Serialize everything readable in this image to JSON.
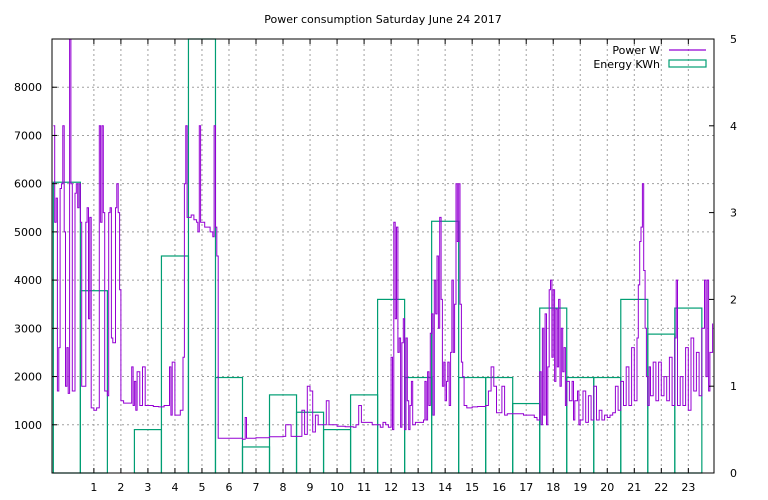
{
  "chart_data": {
    "type": "line",
    "title": "Power consumption Saturday June 24 2017",
    "xlabel": "",
    "ylabel": "",
    "y2label": "",
    "xlim": [
      -0.55,
      23.95
    ],
    "ylim": [
      0,
      9000
    ],
    "y2lim": [
      0,
      5
    ],
    "grid": true,
    "legend_position": "top-right",
    "x_ticks": [
      1,
      2,
      3,
      4,
      5,
      6,
      7,
      8,
      9,
      10,
      11,
      12,
      13,
      14,
      15,
      16,
      17,
      18,
      19,
      20,
      21,
      22,
      23
    ],
    "y_ticks": [
      1000,
      2000,
      3000,
      4000,
      5000,
      6000,
      7000,
      8000
    ],
    "y2_ticks": [
      0,
      1,
      2,
      3,
      4,
      5
    ],
    "series": [
      {
        "name": "Power W",
        "axis": "left",
        "color": "#9400d3",
        "style": "line",
        "points": [
          [
            -0.5,
            7200
          ],
          [
            -0.45,
            5200
          ],
          [
            -0.4,
            5700
          ],
          [
            -0.35,
            1700
          ],
          [
            -0.3,
            2600
          ],
          [
            -0.25,
            5900
          ],
          [
            -0.2,
            6000
          ],
          [
            -0.15,
            7200
          ],
          [
            -0.1,
            5000
          ],
          [
            -0.05,
            1800
          ],
          [
            0.0,
            2600
          ],
          [
            0.05,
            1650
          ],
          [
            0.1,
            9000
          ],
          [
            0.15,
            6000
          ],
          [
            0.2,
            1700
          ],
          [
            0.3,
            5800
          ],
          [
            0.35,
            6000
          ],
          [
            0.4,
            5500
          ],
          [
            0.45,
            6000
          ],
          [
            0.5,
            5200
          ],
          [
            0.55,
            1800
          ],
          [
            0.6,
            1800
          ],
          [
            0.7,
            5200
          ],
          [
            0.75,
            5500
          ],
          [
            0.8,
            3200
          ],
          [
            0.85,
            5300
          ],
          [
            0.9,
            1350
          ],
          [
            1.0,
            1300
          ],
          [
            1.1,
            1350
          ],
          [
            1.2,
            7200
          ],
          [
            1.25,
            5200
          ],
          [
            1.3,
            7200
          ],
          [
            1.35,
            5400
          ],
          [
            1.4,
            1700
          ],
          [
            1.5,
            1600
          ],
          [
            1.55,
            5400
          ],
          [
            1.6,
            5500
          ],
          [
            1.65,
            2800
          ],
          [
            1.7,
            2700
          ],
          [
            1.8,
            5500
          ],
          [
            1.85,
            6000
          ],
          [
            1.9,
            5400
          ],
          [
            1.95,
            3800
          ],
          [
            2.0,
            1500
          ],
          [
            2.1,
            1450
          ],
          [
            2.3,
            1450
          ],
          [
            2.4,
            2200
          ],
          [
            2.45,
            1400
          ],
          [
            2.5,
            1900
          ],
          [
            2.55,
            1300
          ],
          [
            2.6,
            2100
          ],
          [
            2.7,
            1400
          ],
          [
            2.8,
            2200
          ],
          [
            2.9,
            1400
          ],
          [
            3.2,
            1380
          ],
          [
            3.4,
            1370
          ],
          [
            3.6,
            1400
          ],
          [
            3.8,
            2200
          ],
          [
            3.85,
            1200
          ],
          [
            3.9,
            2300
          ],
          [
            4.0,
            1200
          ],
          [
            4.1,
            1200
          ],
          [
            4.2,
            1300
          ],
          [
            4.3,
            2400
          ],
          [
            4.35,
            6000
          ],
          [
            4.4,
            7200
          ],
          [
            4.45,
            5300
          ],
          [
            4.6,
            5350
          ],
          [
            4.7,
            5250
          ],
          [
            4.8,
            5200
          ],
          [
            4.85,
            5000
          ],
          [
            4.9,
            7200
          ],
          [
            4.95,
            5200
          ],
          [
            5.1,
            5100
          ],
          [
            5.2,
            5100
          ],
          [
            5.3,
            5000
          ],
          [
            5.4,
            4900
          ],
          [
            5.45,
            7200
          ],
          [
            5.5,
            5100
          ],
          [
            5.55,
            4500
          ],
          [
            5.6,
            720
          ],
          [
            6.0,
            720
          ],
          [
            6.1,
            720
          ],
          [
            6.3,
            720
          ],
          [
            6.5,
            700
          ],
          [
            6.6,
            1150
          ],
          [
            6.65,
            720
          ],
          [
            7.0,
            730
          ],
          [
            7.5,
            750
          ],
          [
            8.0,
            760
          ],
          [
            8.1,
            1000
          ],
          [
            8.3,
            760
          ],
          [
            8.6,
            760
          ],
          [
            8.7,
            1300
          ],
          [
            8.8,
            800
          ],
          [
            8.9,
            1800
          ],
          [
            9.0,
            1700
          ],
          [
            9.1,
            850
          ],
          [
            9.2,
            1200
          ],
          [
            9.3,
            1000
          ],
          [
            9.5,
            1000
          ],
          [
            9.6,
            1500
          ],
          [
            9.7,
            1000
          ],
          [
            10.0,
            970
          ],
          [
            10.3,
            960
          ],
          [
            10.6,
            950
          ],
          [
            10.7,
            1000
          ],
          [
            10.8,
            1400
          ],
          [
            10.9,
            1050
          ],
          [
            11.0,
            1050
          ],
          [
            11.3,
            1000
          ],
          [
            11.5,
            1000
          ],
          [
            11.6,
            950
          ],
          [
            11.7,
            1050
          ],
          [
            11.8,
            1000
          ],
          [
            11.9,
            950
          ],
          [
            12.0,
            2400
          ],
          [
            12.05,
            900
          ],
          [
            12.1,
            5200
          ],
          [
            12.15,
            3200
          ],
          [
            12.2,
            5100
          ],
          [
            12.25,
            2500
          ],
          [
            12.3,
            2800
          ],
          [
            12.35,
            950
          ],
          [
            12.4,
            2700
          ],
          [
            12.45,
            3200
          ],
          [
            12.5,
            900
          ],
          [
            12.55,
            2800
          ],
          [
            12.6,
            1500
          ],
          [
            12.65,
            900
          ],
          [
            12.7,
            1400
          ],
          [
            12.75,
            1900
          ],
          [
            12.8,
            1000
          ],
          [
            12.9,
            1050
          ],
          [
            13.0,
            1050
          ],
          [
            13.1,
            1050
          ],
          [
            13.2,
            1100
          ],
          [
            13.25,
            1900
          ],
          [
            13.3,
            1100
          ],
          [
            13.35,
            2100
          ],
          [
            13.4,
            1400
          ],
          [
            13.45,
            2900
          ],
          [
            13.5,
            3300
          ],
          [
            13.55,
            1200
          ],
          [
            13.6,
            4000
          ],
          [
            13.65,
            3300
          ],
          [
            13.7,
            4500
          ],
          [
            13.75,
            3000
          ],
          [
            13.8,
            5300
          ],
          [
            13.85,
            3600
          ],
          [
            13.9,
            1800
          ],
          [
            13.95,
            2300
          ],
          [
            14.0,
            1500
          ],
          [
            14.05,
            1900
          ],
          [
            14.1,
            2300
          ],
          [
            14.15,
            1400
          ],
          [
            14.2,
            2500
          ],
          [
            14.25,
            4000
          ],
          [
            14.3,
            2500
          ],
          [
            14.35,
            3500
          ],
          [
            14.4,
            6000
          ],
          [
            14.45,
            4800
          ],
          [
            14.5,
            6000
          ],
          [
            14.55,
            3500
          ],
          [
            14.6,
            2300
          ],
          [
            14.65,
            2000
          ],
          [
            14.7,
            1400
          ],
          [
            14.8,
            1350
          ],
          [
            15.0,
            1370
          ],
          [
            15.2,
            1380
          ],
          [
            15.4,
            1380
          ],
          [
            15.5,
            1400
          ],
          [
            15.6,
            1700
          ],
          [
            15.7,
            2200
          ],
          [
            15.8,
            1800
          ],
          [
            15.9,
            1250
          ],
          [
            16.0,
            1250
          ],
          [
            16.1,
            1800
          ],
          [
            16.2,
            1200
          ],
          [
            16.3,
            1230
          ],
          [
            16.6,
            1230
          ],
          [
            16.9,
            1200
          ],
          [
            17.1,
            1200
          ],
          [
            17.3,
            1150
          ],
          [
            17.4,
            1100
          ],
          [
            17.5,
            2100
          ],
          [
            17.55,
            1000
          ],
          [
            17.6,
            3000
          ],
          [
            17.65,
            1200
          ],
          [
            17.7,
            3300
          ],
          [
            17.75,
            1000
          ],
          [
            17.8,
            2200
          ],
          [
            17.85,
            3800
          ],
          [
            17.9,
            4000
          ],
          [
            17.95,
            2400
          ],
          [
            18.0,
            3800
          ],
          [
            18.05,
            1900
          ],
          [
            18.1,
            3400
          ],
          [
            18.15,
            2200
          ],
          [
            18.2,
            3600
          ],
          [
            18.25,
            1800
          ],
          [
            18.3,
            3000
          ],
          [
            18.35,
            2100
          ],
          [
            18.4,
            2600
          ],
          [
            18.45,
            1400
          ],
          [
            18.5,
            1900
          ],
          [
            18.6,
            1500
          ],
          [
            18.7,
            1900
          ],
          [
            18.75,
            1100
          ],
          [
            18.8,
            1500
          ],
          [
            18.9,
            1700
          ],
          [
            18.95,
            1000
          ],
          [
            19.0,
            1100
          ],
          [
            19.1,
            1700
          ],
          [
            19.2,
            1050
          ],
          [
            19.3,
            1600
          ],
          [
            19.4,
            1100
          ],
          [
            19.5,
            1800
          ],
          [
            19.6,
            1100
          ],
          [
            19.7,
            1300
          ],
          [
            19.8,
            1100
          ],
          [
            19.9,
            1200
          ],
          [
            20.0,
            1150
          ],
          [
            20.1,
            1200
          ],
          [
            20.2,
            1250
          ],
          [
            20.3,
            1800
          ],
          [
            20.4,
            1300
          ],
          [
            20.5,
            1900
          ],
          [
            20.6,
            1400
          ],
          [
            20.7,
            2200
          ],
          [
            20.8,
            1400
          ],
          [
            20.9,
            2600
          ],
          [
            21.0,
            1500
          ],
          [
            21.1,
            2800
          ],
          [
            21.15,
            3900
          ],
          [
            21.2,
            4800
          ],
          [
            21.25,
            5100
          ],
          [
            21.3,
            6000
          ],
          [
            21.35,
            4200
          ],
          [
            21.4,
            3000
          ],
          [
            21.45,
            2000
          ],
          [
            21.5,
            1400
          ],
          [
            21.55,
            2200
          ],
          [
            21.6,
            1600
          ],
          [
            21.7,
            2300
          ],
          [
            21.8,
            1500
          ],
          [
            21.9,
            2300
          ],
          [
            22.0,
            1600
          ],
          [
            22.1,
            2000
          ],
          [
            22.2,
            1500
          ],
          [
            22.3,
            2400
          ],
          [
            22.4,
            1400
          ],
          [
            22.5,
            2800
          ],
          [
            22.55,
            4000
          ],
          [
            22.6,
            1400
          ],
          [
            22.7,
            2000
          ],
          [
            22.8,
            1400
          ],
          [
            22.9,
            2600
          ],
          [
            23.0,
            1300
          ],
          [
            23.1,
            2800
          ],
          [
            23.2,
            1700
          ],
          [
            23.3,
            2500
          ],
          [
            23.4,
            1600
          ],
          [
            23.5,
            3000
          ],
          [
            23.6,
            4000
          ],
          [
            23.65,
            2000
          ],
          [
            23.7,
            4000
          ],
          [
            23.75,
            1700
          ],
          [
            23.8,
            2500
          ],
          [
            23.9,
            3100
          ]
        ]
      },
      {
        "name": "Energy KWh",
        "axis": "right",
        "color": "#009e73",
        "style": "steps",
        "bars": [
          [
            0,
            3.35
          ],
          [
            1,
            2.1
          ],
          [
            2,
            0
          ],
          [
            3,
            0.5
          ],
          [
            4,
            2.5
          ],
          [
            5,
            5
          ],
          [
            6,
            1.1
          ],
          [
            7,
            0.3
          ],
          [
            8,
            0.9
          ],
          [
            9,
            0.7
          ],
          [
            10,
            0.5
          ],
          [
            11,
            0.9
          ],
          [
            12,
            2.0
          ],
          [
            13,
            1.1
          ],
          [
            14,
            2.9
          ],
          [
            15,
            1.1
          ],
          [
            16,
            1.1
          ],
          [
            17,
            0.8
          ],
          [
            18,
            1.9
          ],
          [
            19,
            1.1
          ],
          [
            20,
            1.1
          ],
          [
            21,
            2.0
          ],
          [
            22,
            1.6
          ],
          [
            23,
            1.9
          ]
        ]
      }
    ]
  }
}
